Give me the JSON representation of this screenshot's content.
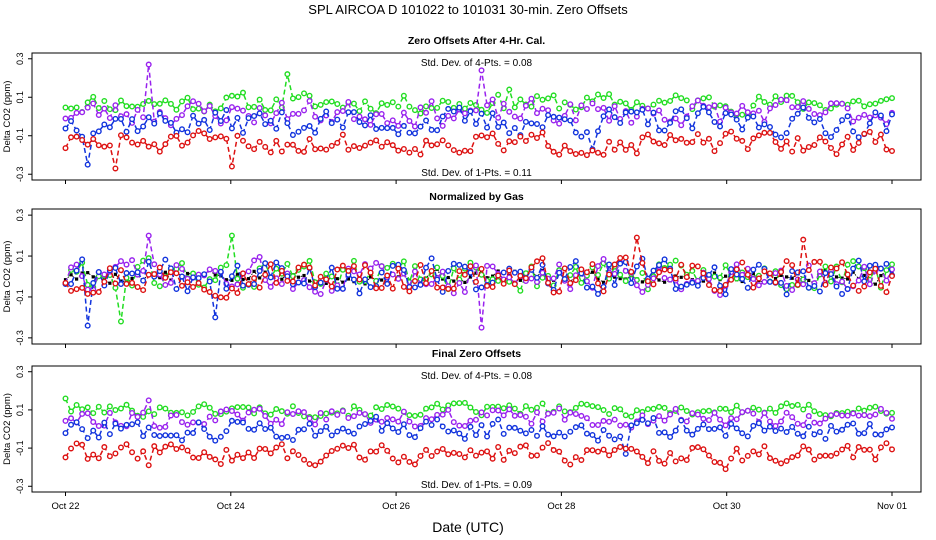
{
  "figure": {
    "main_title": "SPL    AIRCOA D    101022 to 101031    30-min. Zero Offsets",
    "xlabel": "Date (UTC)"
  },
  "colors": {
    "green": "#22dd22",
    "purple": "#9922ee",
    "blue": "#1133dd",
    "red": "#dd1111",
    "black": "#000000"
  },
  "chart_data": [
    {
      "type": "line",
      "title": "Zero Offsets After 4-Hr. Cal.",
      "ylabel": "Delta CO2 (ppm)",
      "ylim": [
        -0.33,
        0.33
      ],
      "yticks": [
        -0.3,
        -0.1,
        0.1,
        0.3
      ],
      "ytick_labels": [
        "-0.3",
        "-0.1",
        "0.1",
        "0.3"
      ],
      "xlim": [
        22.0,
        32.0
      ],
      "xticks": [
        22,
        24,
        26,
        28,
        30,
        32
      ],
      "xtick_labels": [
        "Oct 22",
        "Oct 24",
        "Oct 26",
        "Oct 28",
        "Oct 30",
        "Nov 01"
      ],
      "annotations": {
        "top": "Std. Dev. of 4-Pts. = 0.08",
        "bottom": "Std. Dev. of 1-Pts. = 0.11"
      },
      "series": [
        {
          "name": "green",
          "color": "#22dd22",
          "base": 0.07,
          "amp": 0.045,
          "seed": 11,
          "spikes": [
            [
              0.27,
              0.22
            ],
            [
              0.54,
              0.14
            ]
          ]
        },
        {
          "name": "purple",
          "color": "#9922ee",
          "base": 0.02,
          "amp": 0.06,
          "seed": 23,
          "spikes": [
            [
              0.1,
              0.27
            ],
            [
              0.5,
              0.24
            ]
          ]
        },
        {
          "name": "blue",
          "color": "#1133dd",
          "base": -0.03,
          "amp": 0.065,
          "seed": 37,
          "spikes": [
            [
              0.03,
              -0.25
            ],
            [
              0.64,
              -0.17
            ]
          ]
        },
        {
          "name": "red",
          "color": "#dd1111",
          "base": -0.14,
          "amp": 0.05,
          "seed": 51,
          "spikes": [
            [
              0.06,
              -0.27
            ],
            [
              0.2,
              -0.26
            ]
          ]
        }
      ]
    },
    {
      "type": "line",
      "title": "Normalized by Gas",
      "ylabel": "Delta CO2 (ppm)",
      "ylim": [
        -0.33,
        0.33
      ],
      "yticks": [
        -0.3,
        -0.1,
        0.1,
        0.3
      ],
      "ytick_labels": [
        "-0.3",
        "-0.1",
        "0.1",
        "0.3"
      ],
      "xlim": [
        22.0,
        32.0
      ],
      "xticks": [
        22,
        24,
        26,
        28,
        30,
        32
      ],
      "xtick_labels": [
        "Oct 22",
        "Oct 24",
        "Oct 26",
        "Oct 28",
        "Oct 30",
        "Nov 01"
      ],
      "annotations": {
        "top": "",
        "bottom": ""
      },
      "series": [
        {
          "name": "black",
          "color": "#000000",
          "base": 0.0,
          "amp": 0.03,
          "seed": 5,
          "spikes": []
        },
        {
          "name": "green",
          "color": "#22dd22",
          "base": 0.0,
          "amp": 0.07,
          "seed": 61,
          "spikes": [
            [
              0.07,
              -0.22
            ],
            [
              0.2,
              0.2
            ]
          ]
        },
        {
          "name": "purple",
          "color": "#9922ee",
          "base": 0.0,
          "amp": 0.07,
          "seed": 73,
          "spikes": [
            [
              0.1,
              0.2
            ],
            [
              0.5,
              -0.25
            ]
          ]
        },
        {
          "name": "blue",
          "color": "#1133dd",
          "base": 0.0,
          "amp": 0.08,
          "seed": 89,
          "spikes": [
            [
              0.03,
              -0.24
            ],
            [
              0.18,
              -0.2
            ]
          ]
        },
        {
          "name": "red",
          "color": "#dd1111",
          "base": 0.0,
          "amp": 0.07,
          "seed": 97,
          "spikes": [
            [
              0.69,
              0.19
            ],
            [
              0.89,
              0.18
            ]
          ]
        }
      ]
    },
    {
      "type": "line",
      "title": "Final Zero Offsets",
      "ylabel": "Delta CO2 (ppm)",
      "ylim": [
        -0.33,
        0.33
      ],
      "yticks": [
        -0.3,
        -0.1,
        0.1,
        0.3
      ],
      "ytick_labels": [
        "-0.3",
        "-0.1",
        "0.1",
        "0.3"
      ],
      "xlim": [
        22.0,
        32.0
      ],
      "xticks": [
        22,
        24,
        26,
        28,
        30,
        32
      ],
      "xtick_labels": [
        "Oct 22",
        "Oct 24",
        "Oct 26",
        "Oct 28",
        "Oct 30",
        "Nov 01"
      ],
      "annotations": {
        "top": "Std. Dev. of 4-Pts. = 0.08",
        "bottom": "Std. Dev. of 1-Pts. = 0.09"
      },
      "series": [
        {
          "name": "green",
          "color": "#22dd22",
          "base": 0.1,
          "amp": 0.03,
          "seed": 101,
          "spikes": [
            [
              0.0,
              0.16
            ]
          ]
        },
        {
          "name": "purple",
          "color": "#9922ee",
          "base": 0.06,
          "amp": 0.04,
          "seed": 113,
          "spikes": [
            [
              0.1,
              0.15
            ]
          ]
        },
        {
          "name": "blue",
          "color": "#1133dd",
          "base": 0.0,
          "amp": 0.05,
          "seed": 127,
          "spikes": [
            [
              0.68,
              -0.13
            ]
          ]
        },
        {
          "name": "red",
          "color": "#dd1111",
          "base": -0.13,
          "amp": 0.045,
          "seed": 139,
          "spikes": [
            [
              0.1,
              -0.19
            ],
            [
              0.8,
              -0.21
            ]
          ]
        }
      ]
    }
  ]
}
